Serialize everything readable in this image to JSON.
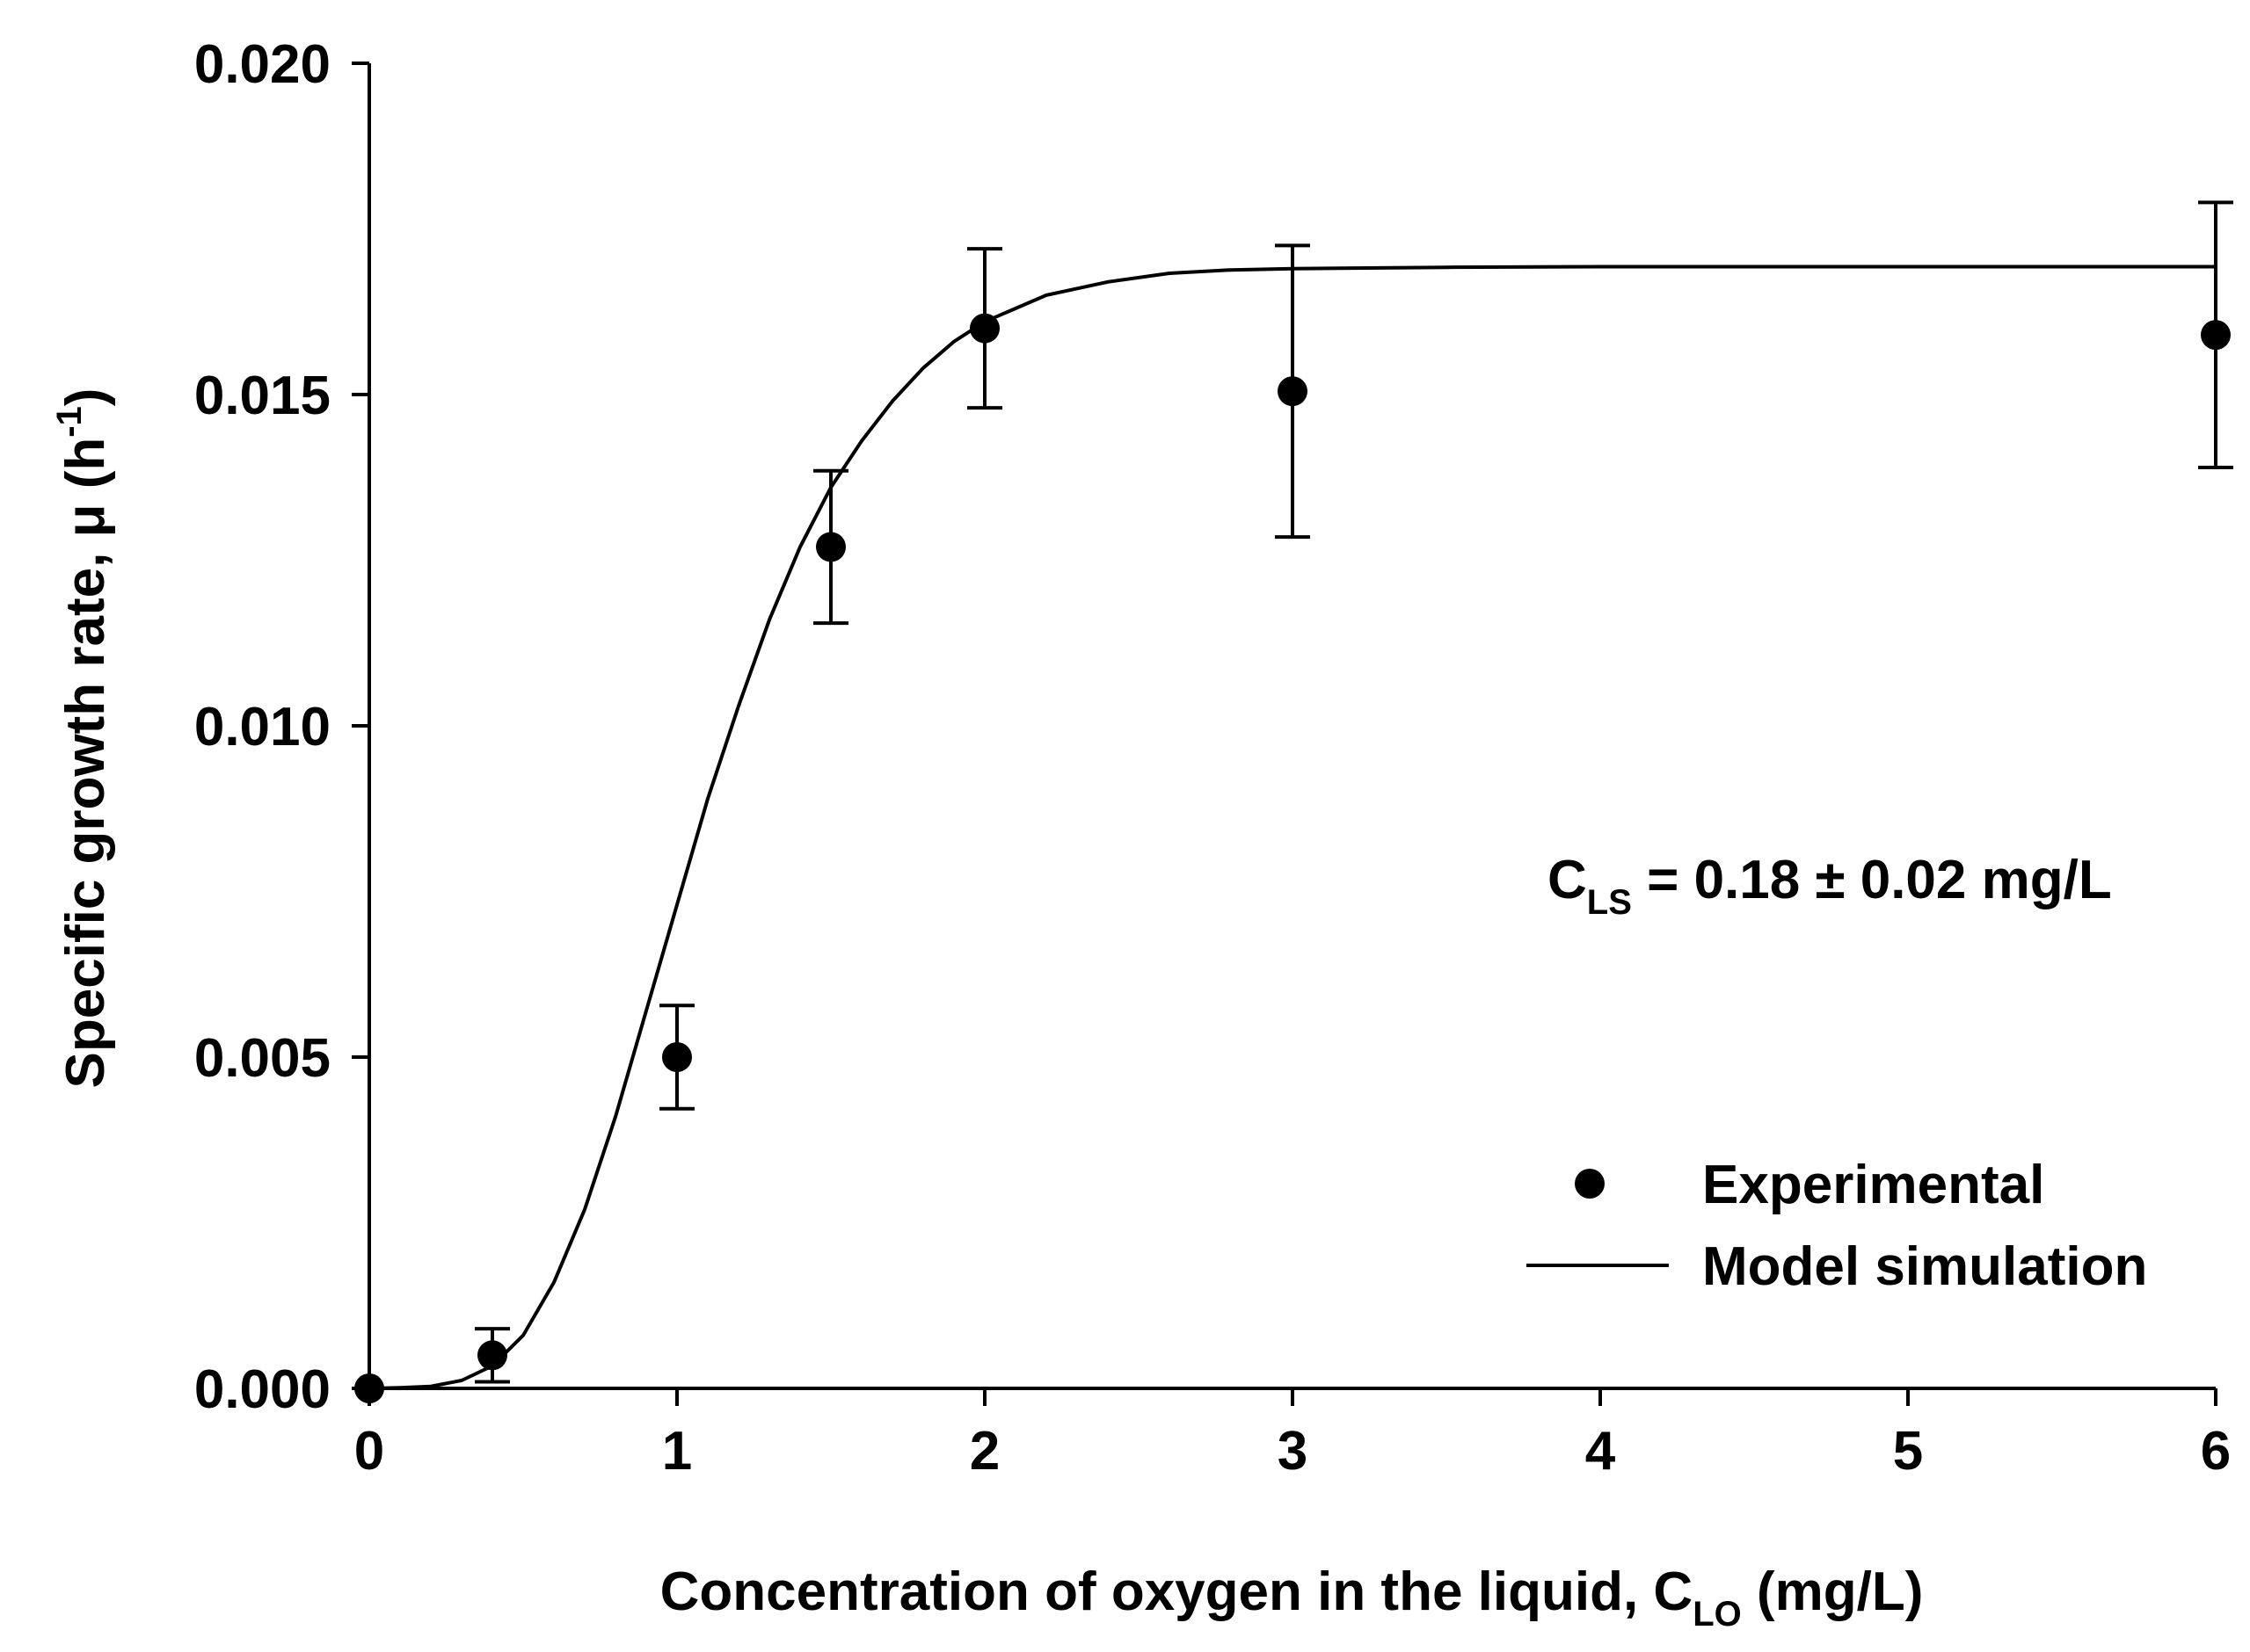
{
  "chart_data": {
    "type": "scatter",
    "title": "",
    "xlabel": {
      "main": "Concentration of oxygen in the liquid, C",
      "subscript": "LO",
      "suffix": " (mg/L)"
    },
    "ylabel": {
      "main": "Specific growth rate, μ (h",
      "superscript": "-1",
      "suffix": ")"
    },
    "xlim": [
      0,
      6
    ],
    "ylim": [
      0,
      0.02
    ],
    "xticks": [
      0,
      1,
      2,
      3,
      4,
      5,
      6
    ],
    "xtick_labels": [
      "0",
      "1",
      "2",
      "3",
      "4",
      "5",
      "6"
    ],
    "yticks": [
      0,
      0.005,
      0.01,
      0.015,
      0.02
    ],
    "ytick_labels": [
      "0.000",
      "0.005",
      "0.010",
      "0.015",
      "0.020"
    ],
    "grid": false,
    "legend_position": "bottom-right",
    "series": [
      {
        "name": "Experimental",
        "kind": "points_with_error_bars",
        "color": "#000000",
        "x": [
          0,
          0.4,
          1,
          1.5,
          2,
          3,
          6
        ],
        "y": [
          0.0,
          0.0005,
          0.005,
          0.0127,
          0.016,
          0.01505,
          0.0159
        ],
        "error": [
          0.0,
          0.0004,
          0.00078,
          0.00115,
          0.0012,
          0.0022,
          0.002
        ]
      },
      {
        "name": "Model simulation",
        "kind": "line",
        "color": "#000000",
        "x": [
          0,
          0.1,
          0.2,
          0.3,
          0.4,
          0.5,
          0.6,
          0.7,
          0.8,
          0.9,
          1.0,
          1.1,
          1.2,
          1.3,
          1.4,
          1.5,
          1.6,
          1.7,
          1.8,
          1.9,
          2.0,
          2.2,
          2.4,
          2.6,
          2.8,
          3.0,
          3.5,
          4.0,
          4.5,
          5.0,
          5.5,
          6.0
        ],
        "y": [
          0.0,
          1e-05,
          3e-05,
          0.00012,
          0.00034,
          0.0008,
          0.0016,
          0.0027,
          0.0041,
          0.0057,
          0.0073,
          0.0089,
          0.0103,
          0.0116,
          0.0127,
          0.0136,
          0.0143,
          0.0149,
          0.0154,
          0.0158,
          0.0161,
          0.0165,
          0.0167,
          0.01683,
          0.01688,
          0.0169,
          0.01692,
          0.01693,
          0.01693,
          0.01693,
          0.01693,
          0.01693
        ]
      }
    ],
    "annotation": {
      "prefix": "C",
      "subscript": "LS",
      "text": " = 0.18 ±  0.02 mg/L"
    }
  }
}
